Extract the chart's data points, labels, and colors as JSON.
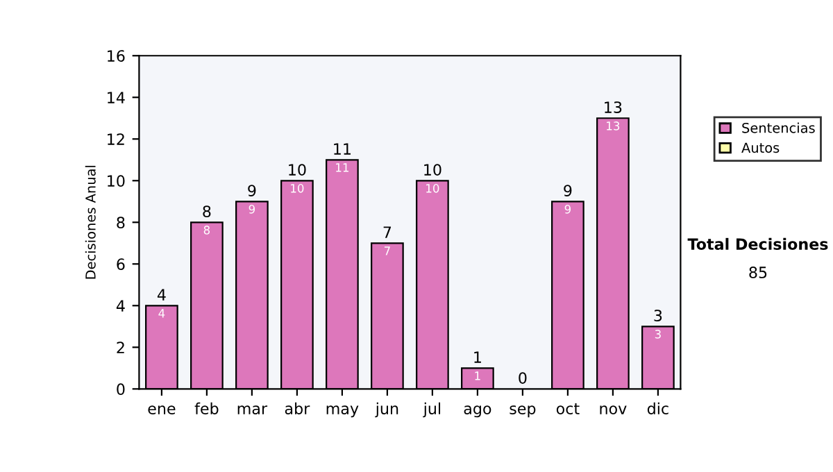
{
  "chart_data": {
    "type": "bar",
    "ylabel": "Decisiones Anual",
    "categories": [
      "ene",
      "feb",
      "mar",
      "abr",
      "may",
      "jun",
      "jul",
      "ago",
      "sep",
      "oct",
      "nov",
      "dic"
    ],
    "stacked": true,
    "series": [
      {
        "name": "Sentencias",
        "color": "#dd77bb",
        "values": [
          4,
          8,
          9,
          10,
          11,
          7,
          10,
          1,
          0,
          9,
          13,
          3
        ],
        "value_labels": [
          "4",
          "8",
          "9",
          "10",
          "11",
          "7",
          "10",
          "1",
          null,
          "9",
          "13",
          "3"
        ]
      },
      {
        "name": "Autos",
        "color": "#ffffaa",
        "values": [
          0,
          0,
          0,
          0,
          0,
          0,
          0,
          0,
          0,
          0,
          0,
          0
        ]
      }
    ],
    "totals": [
      "4",
      "8",
      "9",
      "10",
      "11",
      "7",
      "10",
      "1",
      "0",
      "9",
      "13",
      "3"
    ],
    "ylim": [
      0,
      16
    ],
    "yticks": [
      0,
      2,
      4,
      6,
      8,
      10,
      12,
      14,
      16
    ],
    "grid": false,
    "legend": "right",
    "annotations": [
      "Total Decisiones",
      "85"
    ]
  }
}
